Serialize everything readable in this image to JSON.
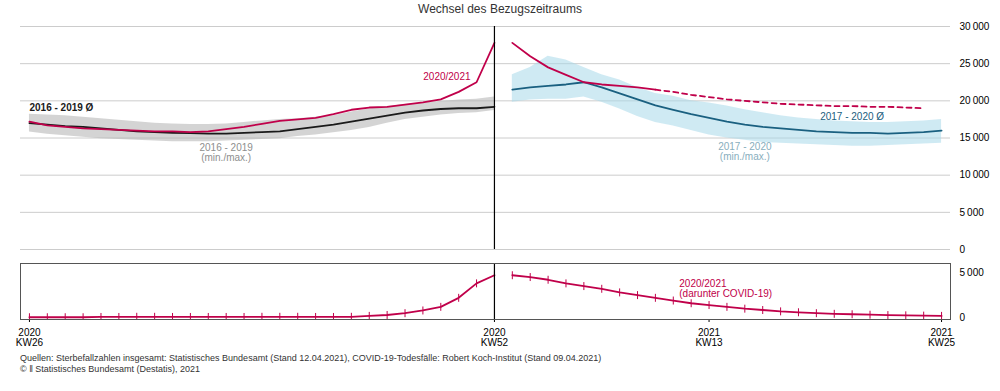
{
  "chart_data": [
    {
      "type": "line",
      "title": "Wechsel des Bezugszeitraums",
      "categories": [
        "2020\nKW26",
        null,
        null,
        null,
        null,
        null,
        null,
        null,
        null,
        null,
        null,
        null,
        null,
        null,
        null,
        null,
        null,
        null,
        null,
        null,
        null,
        null,
        null,
        null,
        null,
        null,
        "2020\nKW52",
        null,
        null,
        null,
        null,
        null,
        null,
        null,
        null,
        null,
        null,
        null,
        "2021\nKW13",
        null,
        null,
        null,
        null,
        null,
        null,
        null,
        null,
        null,
        null,
        null,
        null,
        "2021\nKW25"
      ],
      "ylim": [
        0,
        30000
      ],
      "yticks": [
        0,
        {
          "value": 5000,
          "label": "5 000"
        },
        {
          "value": 10000,
          "label": "10 000"
        },
        {
          "value": 15000,
          "label": "15 000"
        },
        {
          "value": 20000,
          "label": "20 000"
        },
        {
          "value": 25000,
          "label": "25 000"
        },
        {
          "value": 30000,
          "label": "30 000"
        }
      ],
      "grid": true,
      "tick_labels": "y",
      "series": [
        {
          "name": "2016 - 2019\n(min./max.)",
          "type": "area",
          "color": "#b0b0b0",
          "low": [
            15800,
            15500,
            15300,
            15100,
            14900,
            14800,
            14700,
            14600,
            14500,
            14500,
            14500,
            14600,
            14700,
            14800,
            14900,
            15200,
            15400,
            15700,
            16000,
            16400,
            17000,
            17500,
            17800,
            18100,
            18300,
            18400,
            18700,
            null,
            null,
            null,
            null,
            null,
            null,
            null,
            null,
            null,
            null,
            null,
            null,
            null,
            null,
            null,
            null,
            null,
            null,
            null,
            null,
            null,
            null,
            null,
            null,
            null
          ],
          "high": [
            18200,
            18100,
            18000,
            17800,
            17600,
            17400,
            17200,
            17000,
            16900,
            16800,
            16800,
            16900,
            17100,
            17300,
            17500,
            17600,
            17800,
            18000,
            18500,
            18900,
            19200,
            19500,
            19700,
            19900,
            20100,
            20200,
            20500,
            null,
            null,
            null,
            null,
            null,
            null,
            null,
            null,
            null,
            null,
            null,
            null,
            null,
            null,
            null,
            null,
            null,
            null,
            null,
            null,
            null,
            null,
            null,
            null,
            null
          ]
        },
        {
          "name": "2016 - 2019 Ø",
          "color": "#1a1a1a",
          "values": [
            17000,
            16800,
            16600,
            16500,
            16300,
            16100,
            15900,
            15800,
            15700,
            15650,
            15600,
            15600,
            15700,
            15800,
            15900,
            16200,
            16500,
            16800,
            17200,
            17600,
            18000,
            18400,
            18700,
            18900,
            19000,
            19000,
            19200,
            null,
            null,
            null,
            null,
            null,
            null,
            null,
            null,
            null,
            null,
            null,
            null,
            null,
            null,
            null,
            null,
            null,
            null,
            null,
            null,
            null,
            null,
            null,
            null,
            null
          ]
        },
        {
          "name": "2020/2021",
          "color": "#c0004a",
          "values": [
            17200,
            16700,
            16500,
            16300,
            16200,
            16100,
            16000,
            15900,
            15900,
            15800,
            15900,
            16200,
            16500,
            16900,
            17300,
            17500,
            17700,
            18200,
            18800,
            19100,
            19200,
            19500,
            19800,
            20200,
            21200,
            22500,
            27800,
            null,
            null,
            null,
            null,
            null,
            null,
            null,
            null,
            null,
            null,
            null,
            null,
            null,
            null,
            null,
            null,
            null,
            null,
            null,
            null,
            null,
            null,
            null,
            null,
            null
          ]
        },
        {
          "name": "2017 - 2020\n(min./max.)",
          "type": "area",
          "color": "#a8d8ea",
          "low": [
            null,
            null,
            null,
            null,
            null,
            null,
            null,
            null,
            null,
            null,
            null,
            null,
            null,
            null,
            null,
            null,
            null,
            null,
            null,
            null,
            null,
            null,
            null,
            null,
            null,
            null,
            null,
            19800,
            20100,
            20200,
            20200,
            20500,
            19800,
            18900,
            17900,
            17100,
            16600,
            16000,
            15400,
            15000,
            14700,
            14400,
            14300,
            14200,
            14100,
            14000,
            13900,
            13900,
            14000,
            14100,
            14200,
            14300
          ],
          "high": [
            null,
            null,
            null,
            null,
            null,
            null,
            null,
            null,
            null,
            null,
            null,
            null,
            null,
            null,
            null,
            null,
            null,
            null,
            null,
            null,
            null,
            null,
            null,
            null,
            null,
            null,
            null,
            23500,
            24500,
            26000,
            25500,
            24500,
            23500,
            22800,
            21800,
            21000,
            20600,
            20000,
            19700,
            19300,
            18800,
            18400,
            18000,
            17700,
            17500,
            17300,
            17200,
            17100,
            17100,
            17200,
            17300,
            17500
          ]
        },
        {
          "name": "2017 - 2020 Ø",
          "color": "#1a6080",
          "values": [
            null,
            null,
            null,
            null,
            null,
            null,
            null,
            null,
            null,
            null,
            null,
            null,
            null,
            null,
            null,
            null,
            null,
            null,
            null,
            null,
            null,
            null,
            null,
            null,
            null,
            null,
            null,
            21500,
            21800,
            22000,
            22200,
            22500,
            21800,
            21000,
            20200,
            19400,
            18800,
            18200,
            17700,
            17200,
            16800,
            16500,
            16300,
            16100,
            15900,
            15800,
            15700,
            15700,
            15600,
            15700,
            15800,
            16000
          ]
        },
        {
          "color": "#c0004a",
          "values": [
            null,
            null,
            null,
            null,
            null,
            null,
            null,
            null,
            null,
            null,
            null,
            null,
            null,
            null,
            null,
            null,
            null,
            null,
            null,
            null,
            null,
            null,
            null,
            null,
            null,
            null,
            null,
            27800,
            26000,
            24500,
            23500,
            22500,
            22200,
            22000,
            21800,
            21500,
            null,
            null,
            null,
            null,
            null,
            null,
            null,
            null,
            null,
            null,
            null,
            null,
            null,
            null,
            null,
            null
          ]
        },
        {
          "color": "#c0004a",
          "line_style": "dashed",
          "values": [
            null,
            null,
            null,
            null,
            null,
            null,
            null,
            null,
            null,
            null,
            null,
            null,
            null,
            null,
            null,
            null,
            null,
            null,
            null,
            null,
            null,
            null,
            null,
            null,
            null,
            null,
            null,
            null,
            null,
            null,
            null,
            null,
            null,
            null,
            null,
            21500,
            21200,
            20800,
            20500,
            20200,
            20000,
            19800,
            19600,
            19500,
            19400,
            19300,
            19300,
            19200,
            19200,
            19100,
            19000,
            null
          ]
        }
      ]
    },
    {
      "type": "line",
      "categories": [
        "2020\nKW26",
        null,
        null,
        null,
        null,
        null,
        null,
        null,
        null,
        null,
        null,
        null,
        null,
        null,
        null,
        null,
        null,
        null,
        null,
        null,
        null,
        null,
        null,
        null,
        null,
        null,
        "2020\nKW52",
        null,
        null,
        null,
        null,
        null,
        null,
        null,
        null,
        null,
        null,
        null,
        "2021\nKW13",
        null,
        null,
        null,
        null,
        null,
        null,
        null,
        null,
        null,
        null,
        null,
        null,
        "2021\nKW25"
      ],
      "ylim": [
        -200,
        6000
      ],
      "yticks": [
        0,
        {
          "value": 5000,
          "label": "5 000"
        }
      ],
      "grid": false,
      "series": [
        {
          "color": "#c0004a",
          "marker": "vline",
          "values": [
            50,
            50,
            50,
            50,
            80,
            80,
            100,
            100,
            80,
            80,
            80,
            80,
            80,
            100,
            100,
            100,
            80,
            80,
            100,
            200,
            300,
            500,
            800,
            1200,
            2200,
            3800,
            4700,
            null,
            null,
            null,
            null,
            null,
            null,
            null,
            null,
            null,
            null,
            null,
            null,
            null,
            null,
            null,
            null,
            null,
            null,
            null,
            null,
            null,
            null,
            null,
            null,
            null
          ]
        },
        {
          "name": "2020/2021\n(darunter COVID-19)",
          "color": "#c0004a",
          "marker": "vline",
          "values": [
            null,
            null,
            null,
            null,
            null,
            null,
            null,
            null,
            null,
            null,
            null,
            null,
            null,
            null,
            null,
            null,
            null,
            null,
            null,
            null,
            null,
            null,
            null,
            null,
            null,
            null,
            null,
            4700,
            4500,
            4200,
            3800,
            3500,
            3200,
            2800,
            2500,
            2200,
            1900,
            1600,
            1400,
            1200,
            1000,
            850,
            700,
            600,
            500,
            430,
            380,
            330,
            290,
            260,
            230,
            200
          ]
        }
      ],
      "annotations": [
        "Quellen: Sterbefallzahlen insgesamt: Statistisches Bundesamt (Stand 12.04.2021), COVID-19-Todesfälle: Robert Koch-Institut (Stand 09.04.2021)",
        "© ǁ Statistisches Bundesamt (Destatis), 2021"
      ]
    }
  ]
}
